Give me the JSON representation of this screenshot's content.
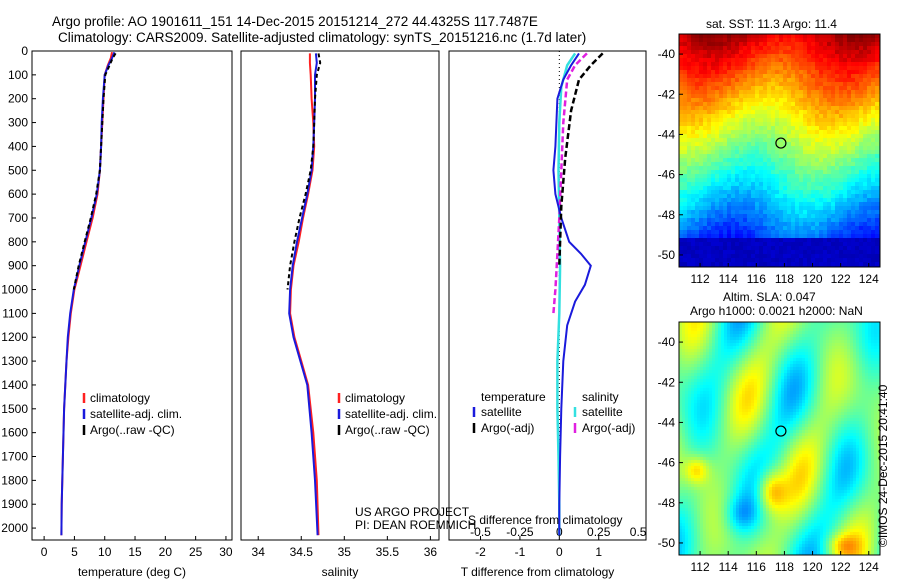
{
  "header": {
    "title_line1": "Argo profile: AO 1901611_151 14-Dec-2015 20151214_272 44.4325S 117.7487E",
    "title_line2": "Climatology: CARS2009. Satellite-adjusted climatology: synTS_20151216.nc (1.7d later)"
  },
  "side": {
    "sst_title": "sat. SST: 11.3 Argo: 11.4",
    "sla_title1": "Altim. SLA: 0.047",
    "sla_title2": "Argo h1000: 0.0021 h2000: NaN",
    "credit": "©IMOS 24-Dec-2015 20:41:40"
  },
  "annotations": {
    "project1": "US ARGO PROJECT",
    "project2": "PI: DEAN ROEMMICH",
    "s_diff_label": "S difference from climatology"
  },
  "legends": {
    "temp": [
      "climatology",
      "satellite-adj. clim.",
      "Argo(..raw -QC)"
    ],
    "sal": [
      "climatology",
      "satellite-adj. clim.",
      "Argo(..raw -QC)"
    ],
    "diff_head_t": "temperature",
    "diff_head_s": "salinity",
    "diff_t": [
      "satellite",
      "Argo(-adj)"
    ],
    "diff_s": [
      "satellite",
      "Argo(-adj)"
    ]
  },
  "colors": {
    "climatology": "#ff2020",
    "satellite": "#1a1adc",
    "argo": "#000000",
    "sal_sat": "#33e0e0",
    "sal_argo": "#e020e0"
  },
  "chart_data": [
    {
      "type": "line",
      "xlabel": "temperature (deg C)",
      "ylabel": "",
      "xlim": [
        -2,
        31
      ],
      "ylim": [
        2050,
        0
      ],
      "xticks": [
        0,
        5,
        10,
        15,
        20,
        25,
        30
      ],
      "yticks": [
        0,
        100,
        200,
        300,
        400,
        500,
        600,
        700,
        800,
        900,
        1000,
        1100,
        1200,
        1300,
        1400,
        1500,
        1600,
        1700,
        1800,
        1900,
        2000
      ],
      "series": [
        {
          "name": "climatology",
          "x": [
            11.2,
            11.0,
            10.5,
            10.0,
            9.8,
            9.6,
            9.4,
            9.2,
            8.8,
            8.0,
            7.0,
            6.0,
            5.0,
            4.4,
            4.0,
            3.7,
            3.5,
            3.3,
            3.2,
            3.1,
            2.9,
            2.85
          ],
          "y": [
            5,
            30,
            60,
            100,
            200,
            300,
            400,
            500,
            600,
            700,
            800,
            900,
            1000,
            1100,
            1200,
            1300,
            1400,
            1500,
            1600,
            1700,
            1900,
            2030
          ]
        },
        {
          "name": "satellite-adj. clim.",
          "x": [
            11.6,
            11.2,
            10.6,
            10.0,
            9.7,
            9.5,
            9.4,
            9.2,
            8.7,
            7.8,
            6.8,
            5.8,
            4.9,
            4.3,
            3.9,
            3.7,
            3.5,
            3.3,
            3.2,
            3.1,
            2.9,
            2.85
          ],
          "y": [
            5,
            30,
            60,
            100,
            200,
            300,
            400,
            500,
            600,
            700,
            800,
            900,
            1000,
            1100,
            1200,
            1300,
            1400,
            1500,
            1600,
            1700,
            1900,
            2030
          ]
        },
        {
          "name": "Argo(..raw -QC)",
          "x": [
            11.8,
            11.3,
            10.8,
            10.1,
            9.8,
            9.6,
            9.4,
            9.2,
            8.6,
            7.7,
            6.7,
            5.7,
            4.9
          ],
          "y": [
            10,
            30,
            60,
            100,
            200,
            300,
            400,
            500,
            600,
            700,
            800,
            900,
            1000
          ]
        }
      ]
    },
    {
      "type": "line",
      "xlabel": "salinity",
      "ylabel": "",
      "xlim": [
        33.8,
        36.1
      ],
      "ylim": [
        2050,
        0
      ],
      "xticks": [
        34,
        34.5,
        35,
        35.5,
        36
      ],
      "series": [
        {
          "name": "climatology",
          "x": [
            34.6,
            34.6,
            34.61,
            34.62,
            34.64,
            34.65,
            34.63,
            34.58,
            34.52,
            34.47,
            34.41,
            34.38,
            34.37,
            34.42,
            34.5,
            34.58,
            34.64,
            34.68,
            34.7
          ],
          "y": [
            10,
            50,
            100,
            200,
            300,
            400,
            500,
            600,
            700,
            800,
            900,
            1000,
            1100,
            1200,
            1300,
            1400,
            1600,
            1800,
            2030
          ]
        },
        {
          "name": "satellite-adj. clim.",
          "x": [
            34.67,
            34.68,
            34.66,
            34.66,
            34.65,
            34.64,
            34.62,
            34.57,
            34.51,
            34.45,
            34.4,
            34.37,
            34.36,
            34.41,
            34.49,
            34.57,
            34.62,
            34.66,
            34.69
          ],
          "y": [
            10,
            50,
            100,
            200,
            300,
            400,
            500,
            600,
            700,
            800,
            900,
            1000,
            1100,
            1200,
            1300,
            1400,
            1600,
            1800,
            2030
          ]
        },
        {
          "name": "Argo(..raw -QC)",
          "x": [
            34.7,
            34.72,
            34.68,
            34.66,
            34.65,
            34.64,
            34.61,
            34.55,
            34.48,
            34.42,
            34.37,
            34.34
          ],
          "y": [
            10,
            50,
            100,
            200,
            300,
            400,
            500,
            600,
            700,
            800,
            900,
            1000
          ]
        }
      ]
    },
    {
      "type": "line",
      "xlabel": "T difference from climatology",
      "ylabel": "",
      "xlim": [
        -2.8,
        2.2
      ],
      "ylim": [
        2050,
        0
      ],
      "xticks": [
        -2,
        -1,
        0,
        1
      ],
      "top_ticks": [
        "-0.5",
        "-0.25",
        "0",
        "0.25",
        "0.5"
      ],
      "series": [
        {
          "name": "satellite (temperature)",
          "x": [
            0.5,
            0.3,
            0.1,
            -0.05,
            -0.1,
            -0.15,
            -0.1,
            0.05,
            0.25,
            0.55,
            0.8,
            0.65,
            0.4,
            0.2,
            0.1,
            0.05,
            0.02,
            0.0,
            0.0
          ],
          "y": [
            10,
            60,
            120,
            200,
            400,
            500,
            600,
            700,
            800,
            850,
            900,
            980,
            1050,
            1150,
            1300,
            1500,
            1700,
            1900,
            2030
          ]
        },
        {
          "name": "Argo(-adj) (temperature)",
          "x": [
            1.1,
            0.8,
            0.5,
            0.3,
            0.15,
            0.05,
            0.0
          ],
          "y": [
            10,
            60,
            120,
            250,
            450,
            650,
            900
          ]
        },
        {
          "name": "satellite (salinity)",
          "x": [
            0.4,
            0.2,
            0.05,
            0.0,
            -0.02,
            0.0,
            0.02,
            0.0,
            -0.05,
            -0.05,
            -0.02,
            0.0,
            0.0
          ],
          "y": [
            10,
            60,
            150,
            300,
            500,
            700,
            900,
            1100,
            1300,
            1500,
            1700,
            1900,
            2030
          ]
        },
        {
          "name": "Argo(-adj) (salinity)",
          "x": [
            0.7,
            0.4,
            0.2,
            0.1,
            0.05,
            0.0,
            -0.05,
            -0.1,
            -0.15
          ],
          "y": [
            10,
            60,
            120,
            300,
            500,
            700,
            850,
            1000,
            1100
          ]
        }
      ]
    },
    {
      "type": "heatmap",
      "title": "sat. SST: 11.3 Argo: 11.4",
      "xlim": [
        110.5,
        124.8
      ],
      "ylim": [
        -50.6,
        -39.0
      ],
      "xticks": [
        112,
        114,
        116,
        118,
        120,
        122,
        124
      ],
      "yticks": [
        -40,
        -42,
        -44,
        -46,
        -48,
        -50
      ],
      "marker": {
        "x": 117.75,
        "y": -44.43
      }
    },
    {
      "type": "heatmap",
      "title": "Altim. SLA: 0.047",
      "xlim": [
        110.5,
        124.8
      ],
      "ylim": [
        -50.6,
        -39.0
      ],
      "xticks": [
        112,
        114,
        116,
        118,
        120,
        122,
        124
      ],
      "yticks": [
        -40,
        -42,
        -44,
        -46,
        -48,
        -50
      ],
      "marker": {
        "x": 117.75,
        "y": -44.43
      }
    }
  ]
}
